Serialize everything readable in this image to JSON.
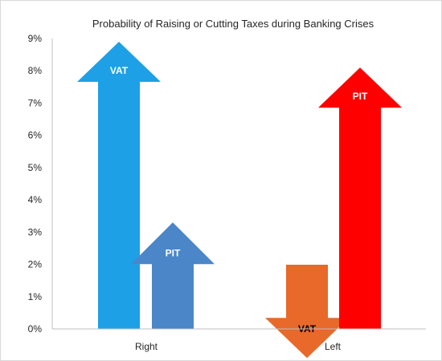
{
  "chart_data": {
    "type": "bar",
    "title": "Probability of Raising or Cutting Taxes during Banking Crises",
    "xlabel": "",
    "ylabel": "",
    "ylim": [
      0,
      9
    ],
    "yticks": [
      "0%",
      "1%",
      "2%",
      "3%",
      "4%",
      "5%",
      "6%",
      "7%",
      "8%",
      "9%"
    ],
    "categories": [
      "Right",
      "Left"
    ],
    "grid": false,
    "legend": "none",
    "arrows": [
      {
        "category": "Right",
        "label": "VAT",
        "value": 8.9,
        "direction": "up",
        "color": "#1ea0e6",
        "label_color": "#ffffff"
      },
      {
        "category": "Right",
        "label": "PIT",
        "value": 3.3,
        "direction": "up",
        "color": "#4a86c8",
        "label_color": "#ffffff"
      },
      {
        "category": "Left",
        "label": "VAT",
        "value": -0.9,
        "direction": "down",
        "color": "#e8692a",
        "label_color": "#000000"
      },
      {
        "category": "Left",
        "label": "PIT",
        "value": 8.1,
        "direction": "up",
        "color": "#ff0000",
        "label_color": "#ffffff"
      }
    ]
  }
}
